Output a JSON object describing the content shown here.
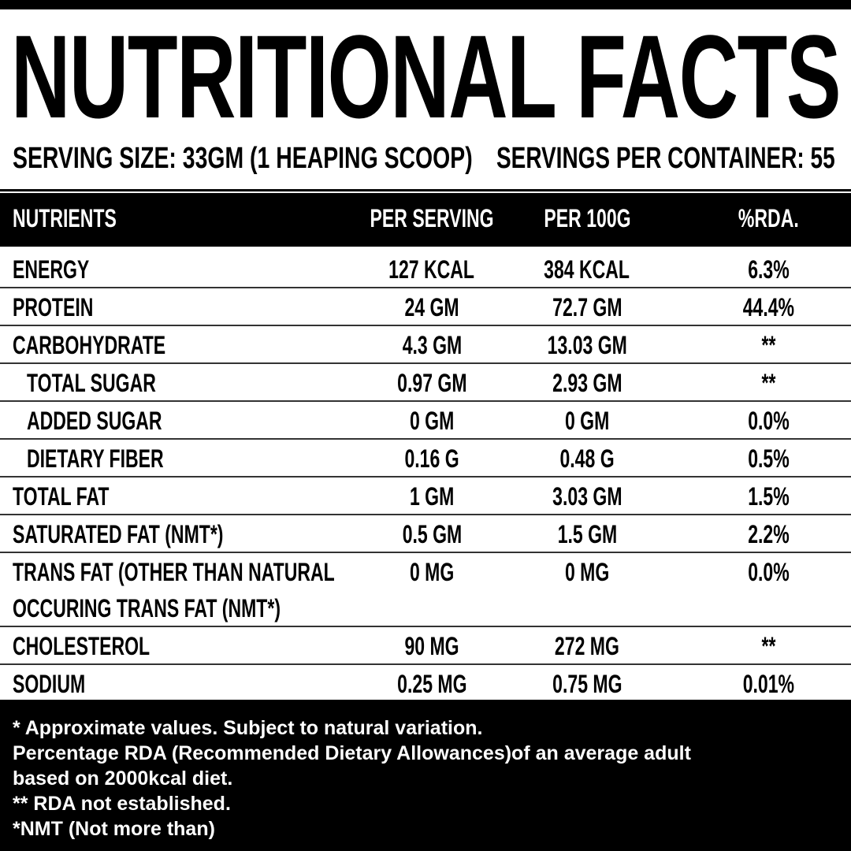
{
  "title": "NUTRITIONAL FACTS",
  "serving_size": "SERVING SIZE: 33GM (1 HEAPING SCOOP)",
  "servings_per_container": "SERVINGS PER CONTAINER: 55",
  "table": {
    "headers": [
      "NUTRIENTS",
      "PER SERVING",
      "PER 100G",
      "%RDA."
    ],
    "rows": [
      {
        "name": "ENERGY",
        "per_serving": "127 KCAL",
        "per_100g": "384 KCAL",
        "rda": "6.3%"
      },
      {
        "name": "PROTEIN",
        "per_serving": "24 GM",
        "per_100g": "72.7 GM",
        "rda": "44.4%"
      },
      {
        "name": "CARBOHYDRATE",
        "per_serving": "4.3 GM",
        "per_100g": "13.03 GM",
        "rda": "**"
      },
      {
        "name": "TOTAL SUGAR",
        "per_serving": "0.97 GM",
        "per_100g": "2.93 GM",
        "rda": "**"
      },
      {
        "name": "ADDED SUGAR",
        "per_serving": "0 GM",
        "per_100g": "0 GM",
        "rda": "0.0%"
      },
      {
        "name": "DIETARY FIBER",
        "per_serving": "0.16 G",
        "per_100g": "0.48 G",
        "rda": "0.5%"
      },
      {
        "name": "TOTAL FAT",
        "per_serving": "1 GM",
        "per_100g": "3.03 GM",
        "rda": "1.5%"
      },
      {
        "name": "SATURATED FAT (NMT*)",
        "per_serving": "0.5 GM",
        "per_100g": "1.5 GM",
        "rda": "2.2%"
      },
      {
        "name": "TRANS FAT (OTHER THAN NATURAL",
        "name_line2": "OCCURING TRANS FAT (NMT*)",
        "per_serving": "0 MG",
        "per_100g": "0 MG",
        "rda": "0.0%"
      },
      {
        "name": "CHOLESTEROL",
        "per_serving": "90 MG",
        "per_100g": "272 MG",
        "rda": "**"
      },
      {
        "name": "SODIUM",
        "per_serving": "0.25 MG",
        "per_100g": "0.75 MG",
        "rda": "0.01%"
      }
    ]
  },
  "footer": [
    "* Approximate values. Subject to natural variation.",
    "Percentage RDA (Recommended Dietary Allowances)of an average adult",
    "based on 2000kcal diet.",
    "** RDA not established.",
    "*NMT (Not more than)"
  ]
}
